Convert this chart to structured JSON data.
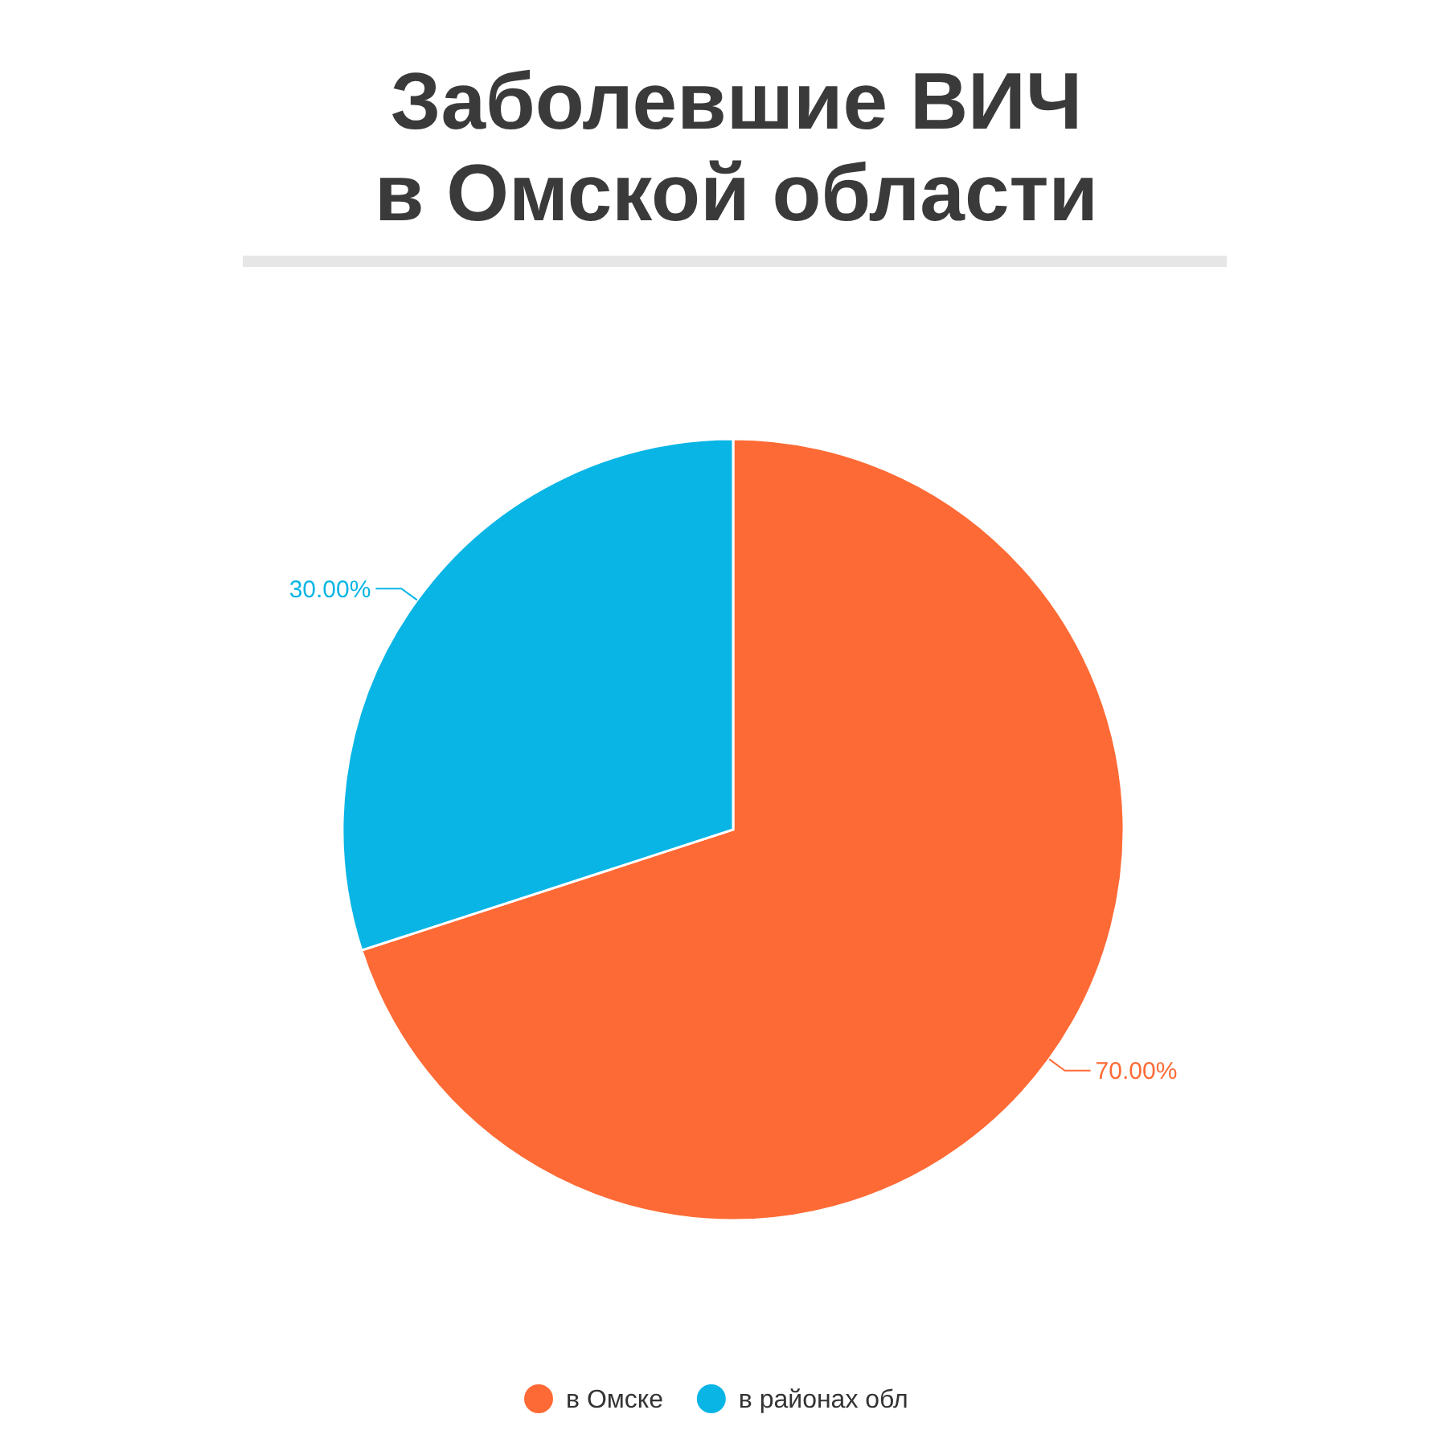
{
  "chart_data": {
    "type": "pie",
    "title": "Заболевшие ВИЧ\nв Омской области",
    "categories": [
      "в Омске",
      "в районах обл"
    ],
    "values": [
      70,
      30
    ],
    "colors": [
      "#fe6a35",
      "#08b5e5"
    ],
    "value_labels": [
      "70.00%",
      "30.00%"
    ],
    "legend": "bottom"
  }
}
